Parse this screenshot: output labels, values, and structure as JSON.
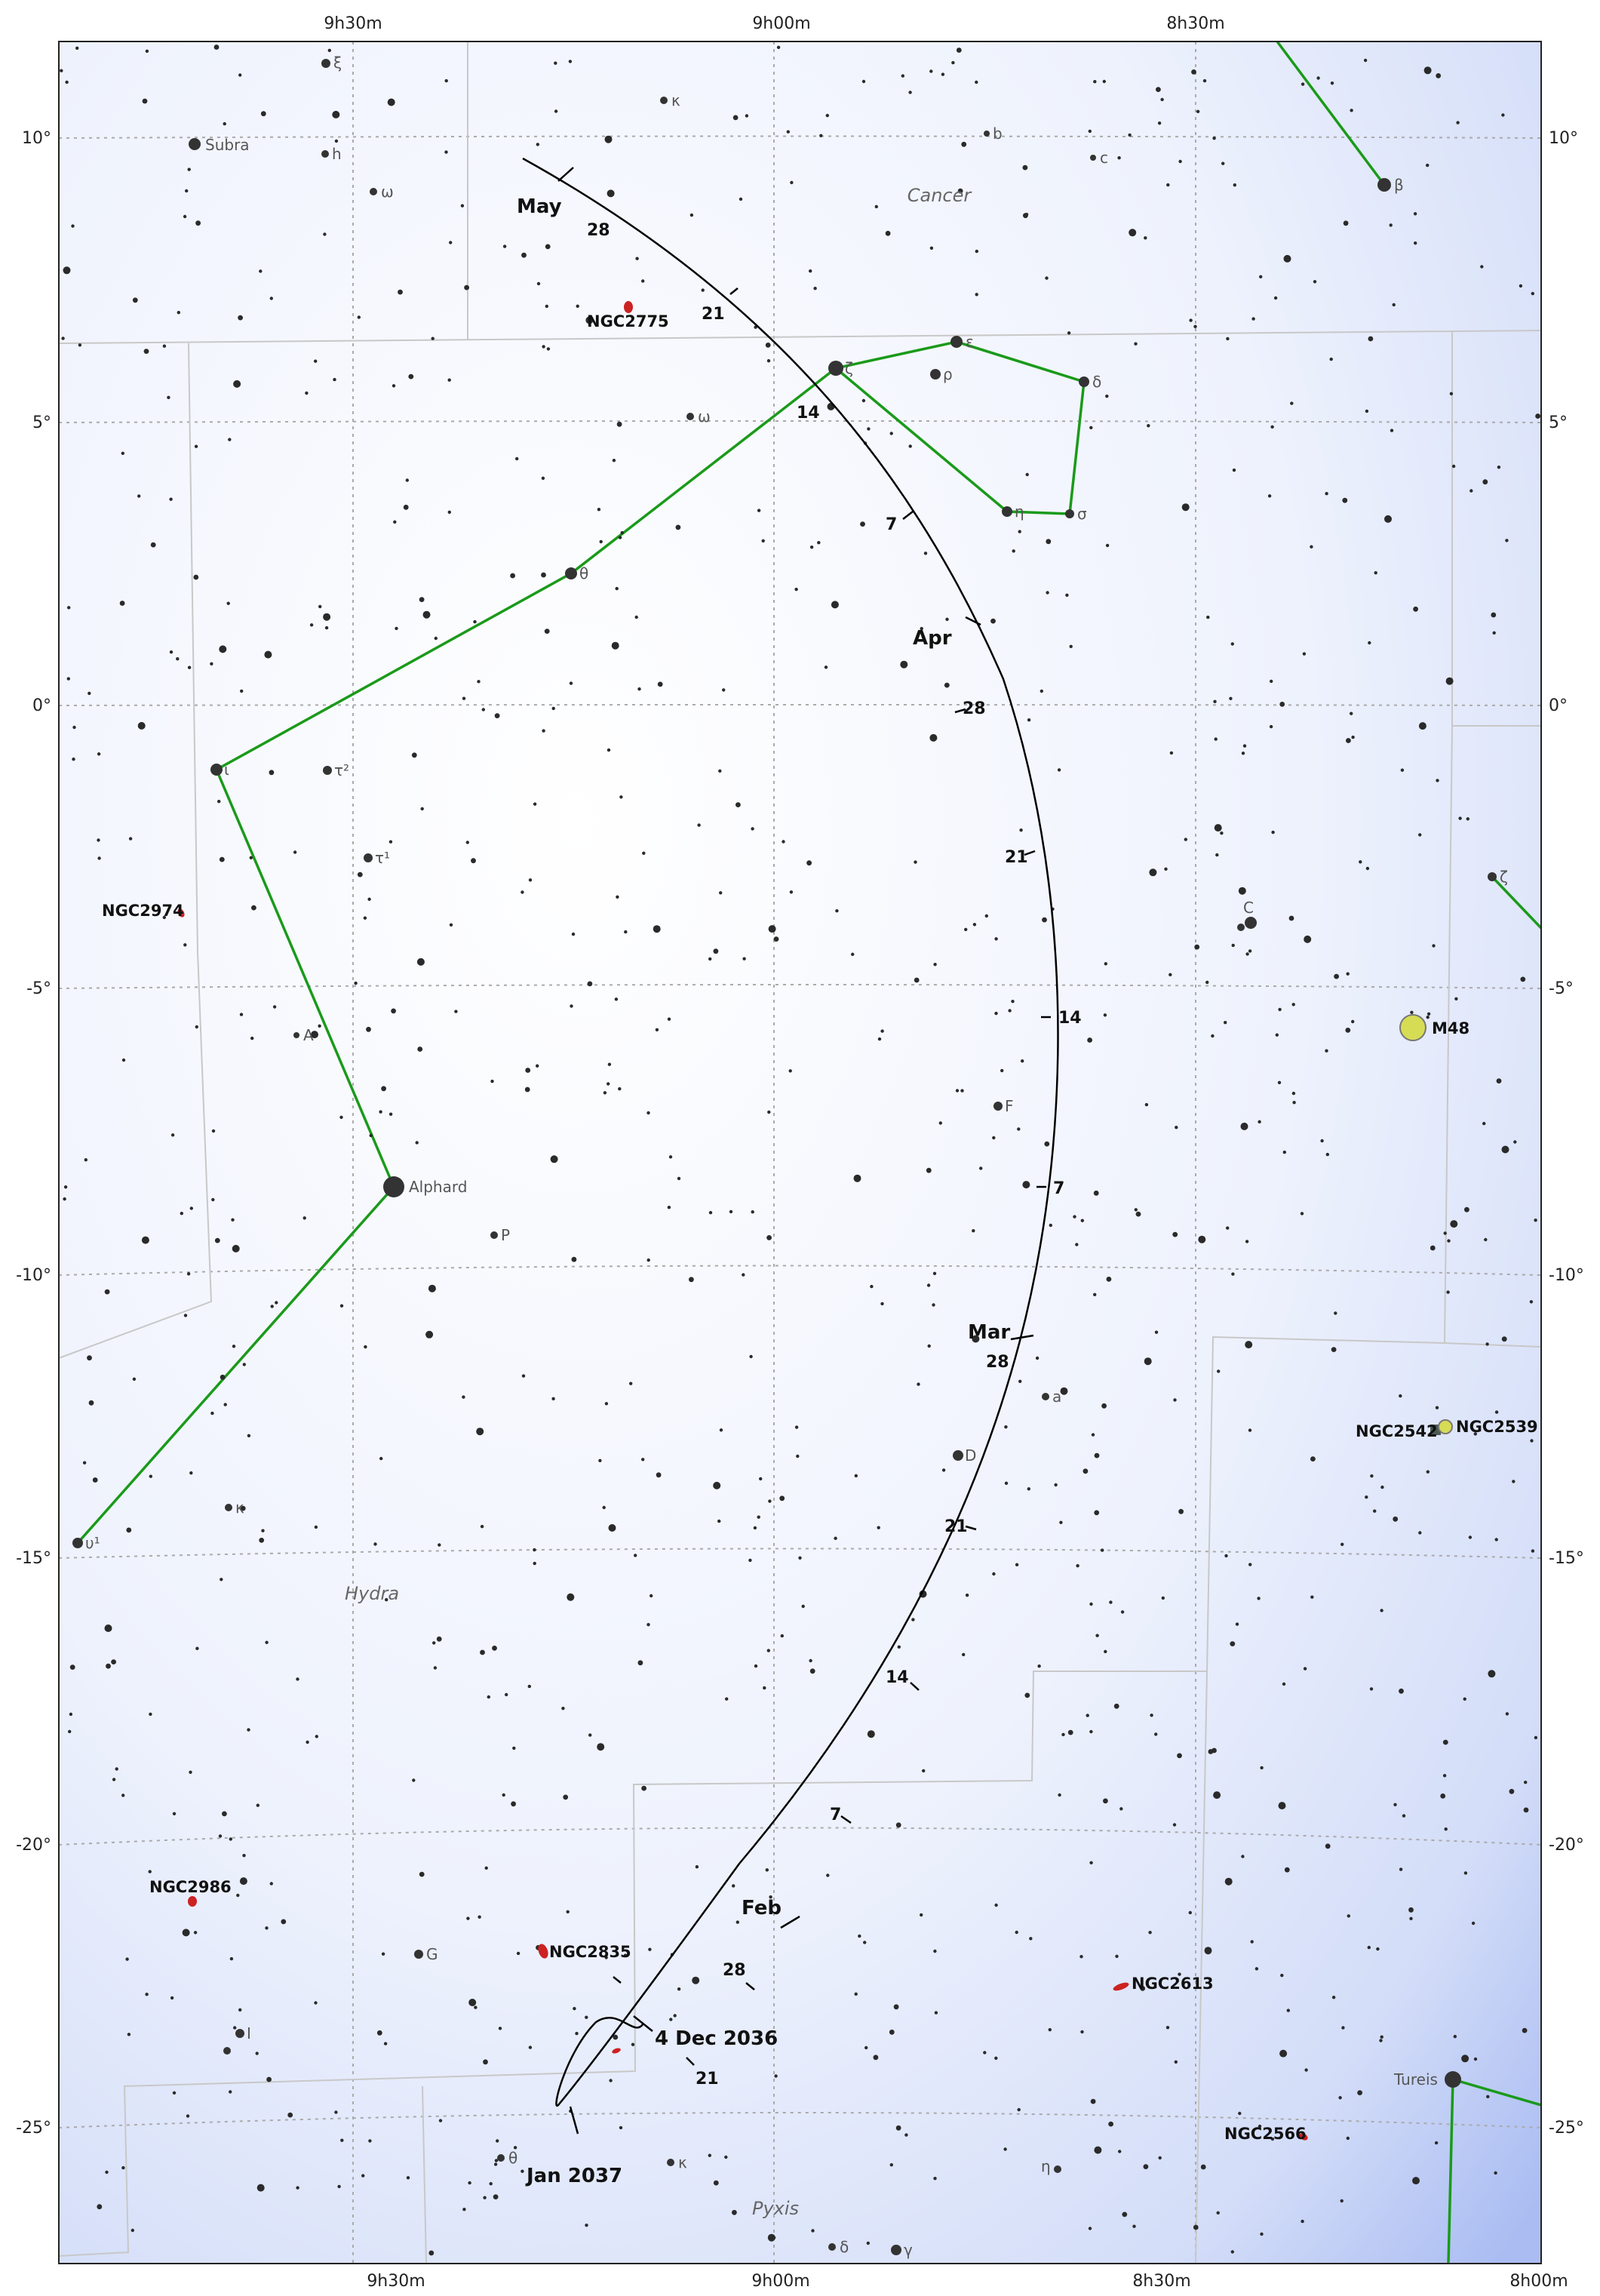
{
  "ra_labels": [
    "9h30m",
    "9h00m",
    "8h30m",
    "8h00m"
  ],
  "dec_labels": [
    "10°",
    "5°",
    "0°",
    "-5°",
    "-10°",
    "-15°",
    "-20°",
    "-25°"
  ],
  "constellations": [
    "Cancer",
    "Hydra",
    "Pyxis"
  ],
  "named_stars": [
    "Subra",
    "Alphard",
    "Tureis"
  ],
  "star_letters": [
    "ξ",
    "κ",
    "h",
    "ω",
    "b",
    "c",
    "β",
    "ε",
    "ζ",
    "ρ",
    "δ",
    "ω",
    "η",
    "σ",
    "θ",
    "τ²",
    "τ¹",
    "ι",
    "A",
    "P",
    "F",
    "a",
    "D",
    "κ",
    "υ¹",
    "C",
    "ζ",
    "G",
    "I",
    "θ",
    "κ",
    "δ",
    "γ",
    "η"
  ],
  "deep_sky": [
    "NGC2775",
    "NGC2974",
    "M48",
    "NGC2542",
    "NGC2539",
    "NGC2986",
    "NGC2835",
    "NGC2613",
    "NGC2566"
  ],
  "path_months": [
    "May",
    "Apr",
    "Mar",
    "Feb"
  ],
  "path_days": [
    "28",
    "21",
    "14",
    "7",
    "28",
    "21",
    "14",
    "7",
    "28",
    "21",
    "14",
    "7",
    "28",
    "21"
  ],
  "path_start": "4 Dec 2036",
  "path_end": "Jan 2037",
  "colors": {
    "path": "#000000",
    "constellation_line": "#1a9a1a",
    "cluster_fill": "#d7dc55",
    "galaxy_fill": "#cc2222",
    "background_edge": "#aabcf2"
  }
}
